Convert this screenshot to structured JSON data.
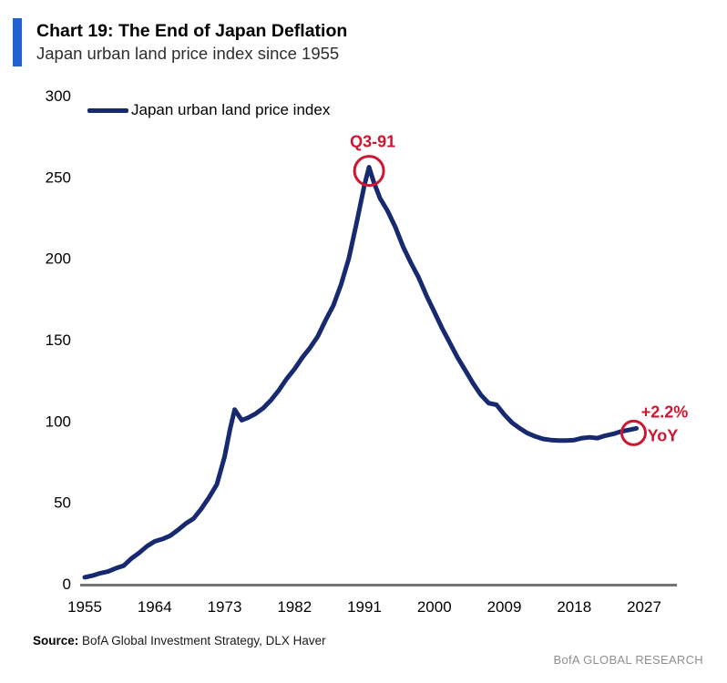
{
  "header": {
    "title": "Chart 19: The End of Japan Deflation",
    "subtitle": "Japan urban land price index since 1955"
  },
  "legend": {
    "label": "Japan urban land price index"
  },
  "annotations": {
    "peak_label": "Q3-91",
    "end_label_line1": "+2.2%",
    "end_label_line2": "YoY"
  },
  "footer": {
    "source_label": "Source:",
    "source_text": " BofA Global Investment Strategy, DLX Haver",
    "brand": "BofA GLOBAL RESEARCH"
  },
  "colors": {
    "line": "#172a70",
    "annotation_red": "#d01531",
    "accent_bar": "#1f62d4",
    "axis": "#737373"
  },
  "chart_data": {
    "type": "line",
    "title": "Japan urban land price index since 1955",
    "xlabel": "",
    "ylabel": "",
    "xlim": [
      1955,
      2027
    ],
    "ylim": [
      0,
      300
    ],
    "yticks": [
      0,
      50,
      100,
      150,
      200,
      250,
      300
    ],
    "xticks": [
      1955,
      1964,
      1973,
      1982,
      1991,
      2000,
      2009,
      2018,
      2027
    ],
    "grid": false,
    "legend_position": "top-left",
    "series": [
      {
        "name": "Japan urban land price index",
        "points": [
          [
            1955,
            4
          ],
          [
            1956,
            5
          ],
          [
            1957,
            6.5
          ],
          [
            1958,
            7.5
          ],
          [
            1959,
            9.5
          ],
          [
            1960,
            11
          ],
          [
            1961,
            15.5
          ],
          [
            1962,
            19
          ],
          [
            1963,
            23
          ],
          [
            1964,
            26
          ],
          [
            1965,
            27.5
          ],
          [
            1966,
            29.5
          ],
          [
            1967,
            33
          ],
          [
            1968,
            37
          ],
          [
            1969,
            40
          ],
          [
            1970,
            46
          ],
          [
            1971,
            53
          ],
          [
            1972,
            61
          ],
          [
            1973,
            78
          ],
          [
            1973.7,
            95
          ],
          [
            1974.3,
            107
          ],
          [
            1975.2,
            100.5
          ],
          [
            1976,
            102
          ],
          [
            1977,
            104.5
          ],
          [
            1978,
            108
          ],
          [
            1979,
            113
          ],
          [
            1980,
            119
          ],
          [
            1981,
            126
          ],
          [
            1982,
            132
          ],
          [
            1983,
            139
          ],
          [
            1984,
            145
          ],
          [
            1985,
            152
          ],
          [
            1986,
            162
          ],
          [
            1987,
            171
          ],
          [
            1988,
            184
          ],
          [
            1989,
            200
          ],
          [
            1990,
            222
          ],
          [
            1991,
            245
          ],
          [
            1991.6,
            256
          ],
          [
            1992.2,
            247
          ],
          [
            1993,
            237
          ],
          [
            1994,
            229
          ],
          [
            1995,
            219
          ],
          [
            1996,
            207
          ],
          [
            1997,
            197
          ],
          [
            1998,
            188
          ],
          [
            1999,
            177
          ],
          [
            2000,
            167
          ],
          [
            2001,
            157
          ],
          [
            2002,
            148
          ],
          [
            2003,
            139
          ],
          [
            2004,
            131
          ],
          [
            2005,
            123
          ],
          [
            2006,
            116
          ],
          [
            2007,
            111
          ],
          [
            2008,
            110
          ],
          [
            2009,
            104
          ],
          [
            2010,
            99
          ],
          [
            2011,
            95.5
          ],
          [
            2012,
            92.5
          ],
          [
            2013,
            90.5
          ],
          [
            2014,
            89
          ],
          [
            2015,
            88.3
          ],
          [
            2016,
            88
          ],
          [
            2017,
            88
          ],
          [
            2018,
            88.3
          ],
          [
            2019,
            89.5
          ],
          [
            2020,
            90
          ],
          [
            2021,
            89.5
          ],
          [
            2022,
            91
          ],
          [
            2023,
            92
          ],
          [
            2024,
            93.5
          ],
          [
            2025,
            94.5
          ],
          [
            2026,
            95.5
          ]
        ]
      }
    ],
    "annotations": [
      {
        "label": "Q3-91",
        "x": 1991.6,
        "y": 256,
        "type": "circled-point"
      },
      {
        "label": "+2.2% YoY",
        "x": 2026,
        "y": 95.5,
        "type": "circled-point"
      }
    ]
  }
}
